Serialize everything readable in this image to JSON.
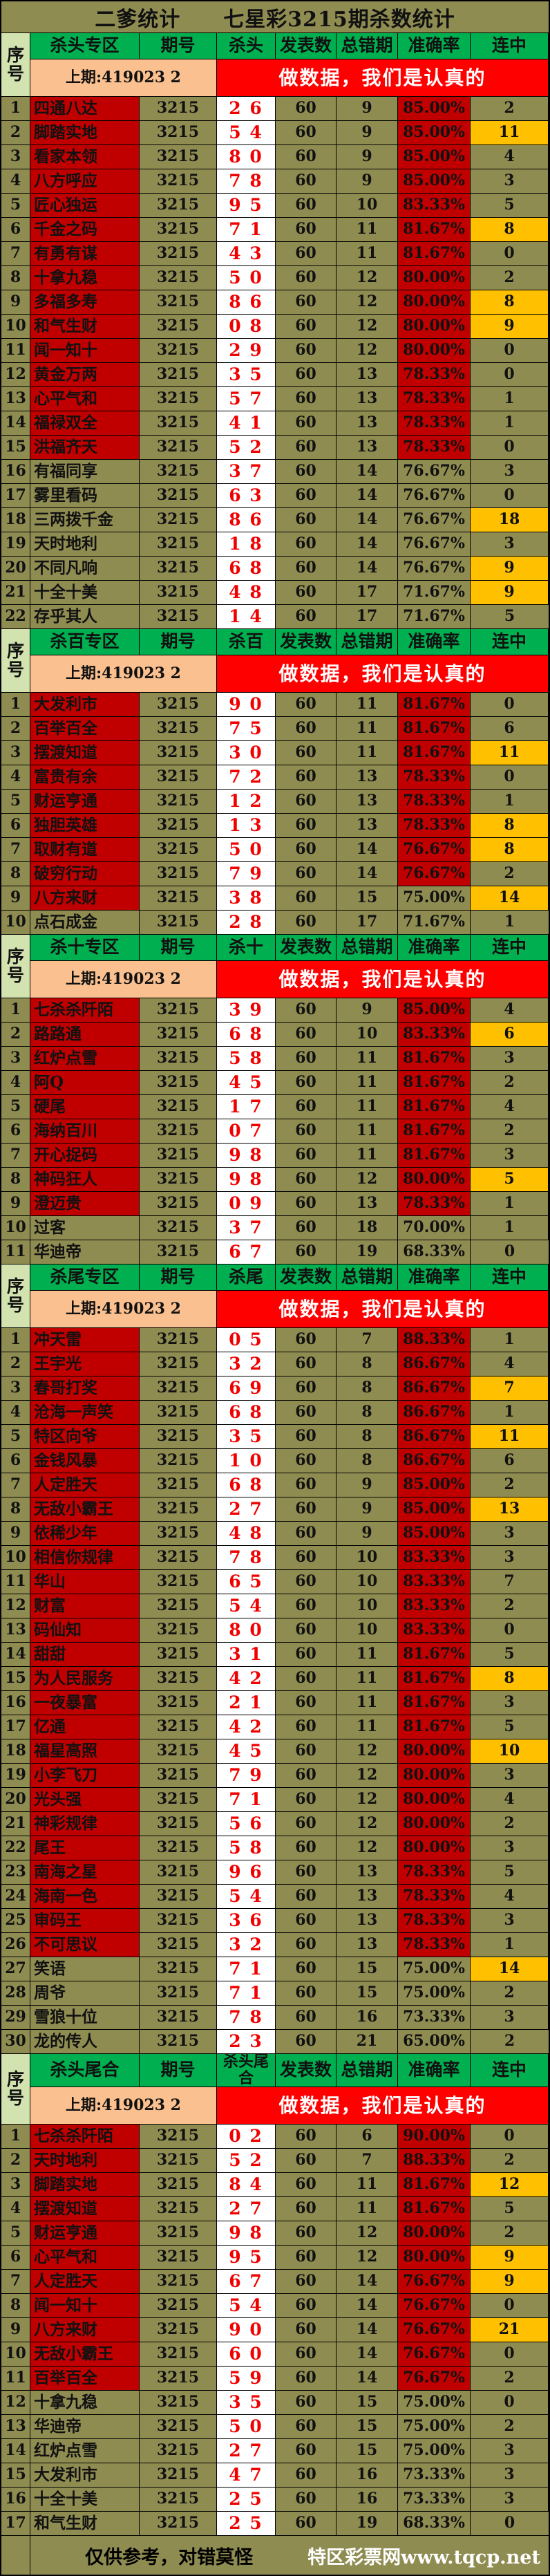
{
  "title": "二爹统计　　七星彩3215期杀数统计",
  "seq_header": "序号",
  "shared_columns": {
    "period": "期号",
    "published": "发表数",
    "total_errors": "总错期",
    "accuracy": "准确率",
    "streak": "连中"
  },
  "subheader": {
    "prev": "上期:419023 2",
    "banner": "做数据，我们是认真的"
  },
  "row_fields": [
    "no",
    "name",
    "period",
    "kill",
    "published",
    "total_errors",
    "accuracy",
    "streak",
    "streak_highlight",
    "name_red",
    "accuracy_red"
  ],
  "sections": [
    {
      "zone": "杀头专区",
      "kill_label": "杀头",
      "rows": [
        [
          1,
          "四通八达",
          "3215",
          "2 6",
          60,
          9,
          "85.00%",
          2,
          false,
          true,
          true
        ],
        [
          2,
          "脚踏实地",
          "3215",
          "5 4",
          60,
          9,
          "85.00%",
          11,
          true,
          true,
          true
        ],
        [
          3,
          "看家本领",
          "3215",
          "8 0",
          60,
          9,
          "85.00%",
          4,
          false,
          true,
          true
        ],
        [
          4,
          "八方呼应",
          "3215",
          "7 8",
          60,
          9,
          "85.00%",
          3,
          false,
          true,
          true
        ],
        [
          5,
          "匠心独运",
          "3215",
          "9 5",
          60,
          10,
          "83.33%",
          5,
          false,
          true,
          true
        ],
        [
          6,
          "千金之码",
          "3215",
          "7 1",
          60,
          11,
          "81.67%",
          8,
          true,
          true,
          true
        ],
        [
          7,
          "有勇有谋",
          "3215",
          "4 3",
          60,
          11,
          "81.67%",
          0,
          false,
          true,
          true
        ],
        [
          8,
          "十拿九稳",
          "3215",
          "5 0",
          60,
          12,
          "80.00%",
          2,
          false,
          true,
          true
        ],
        [
          9,
          "多福多寿",
          "3215",
          "8 6",
          60,
          12,
          "80.00%",
          8,
          true,
          true,
          true
        ],
        [
          10,
          "和气生财",
          "3215",
          "0 8",
          60,
          12,
          "80.00%",
          9,
          true,
          true,
          true
        ],
        [
          11,
          "闻一知十",
          "3215",
          "2 9",
          60,
          12,
          "80.00%",
          0,
          false,
          true,
          true
        ],
        [
          12,
          "黄金万两",
          "3215",
          "3 5",
          60,
          13,
          "78.33%",
          0,
          false,
          true,
          true
        ],
        [
          13,
          "心平气和",
          "3215",
          "5 7",
          60,
          13,
          "78.33%",
          1,
          false,
          true,
          true
        ],
        [
          14,
          "福禄双全",
          "3215",
          "4 1",
          60,
          13,
          "78.33%",
          1,
          false,
          true,
          true
        ],
        [
          15,
          "洪福齐天",
          "3215",
          "5 2",
          60,
          13,
          "78.33%",
          0,
          false,
          true,
          true
        ],
        [
          16,
          "有福同享",
          "3215",
          "3 7",
          60,
          14,
          "76.67%",
          3,
          false,
          false,
          false
        ],
        [
          17,
          "雾里看码",
          "3215",
          "6 3",
          60,
          14,
          "76.67%",
          0,
          false,
          false,
          false
        ],
        [
          18,
          "三两拨千金",
          "3215",
          "8 6",
          60,
          14,
          "76.67%",
          18,
          true,
          false,
          false
        ],
        [
          19,
          "天时地利",
          "3215",
          "1 8",
          60,
          14,
          "76.67%",
          3,
          false,
          false,
          false
        ],
        [
          20,
          "不同凡响",
          "3215",
          "6 8",
          60,
          14,
          "76.67%",
          9,
          true,
          false,
          false
        ],
        [
          21,
          "十全十美",
          "3215",
          "4 8",
          60,
          17,
          "71.67%",
          9,
          true,
          false,
          false
        ],
        [
          22,
          "存乎其人",
          "3215",
          "1 4",
          60,
          17,
          "71.67%",
          5,
          false,
          false,
          false
        ]
      ]
    },
    {
      "zone": "杀百专区",
      "kill_label": "杀百",
      "rows": [
        [
          1,
          "大发利市",
          "3215",
          "9 0",
          60,
          11,
          "81.67%",
          0,
          false,
          true,
          true
        ],
        [
          2,
          "百举百全",
          "3215",
          "7 5",
          60,
          11,
          "81.67%",
          6,
          false,
          true,
          true
        ],
        [
          3,
          "摆渡知道",
          "3215",
          "3 0",
          60,
          11,
          "81.67%",
          11,
          true,
          true,
          true
        ],
        [
          4,
          "富贵有余",
          "3215",
          "7 2",
          60,
          13,
          "78.33%",
          0,
          false,
          true,
          true
        ],
        [
          5,
          "财运亨通",
          "3215",
          "1 2",
          60,
          13,
          "78.33%",
          1,
          false,
          true,
          true
        ],
        [
          6,
          "独胆英雄",
          "3215",
          "1 3",
          60,
          13,
          "78.33%",
          8,
          true,
          true,
          true
        ],
        [
          7,
          "取财有道",
          "3215",
          "5 0",
          60,
          14,
          "76.67%",
          8,
          true,
          true,
          true
        ],
        [
          8,
          "破穷行动",
          "3215",
          "7 9",
          60,
          14,
          "76.67%",
          2,
          false,
          true,
          true
        ],
        [
          9,
          "八方来财",
          "3215",
          "3 8",
          60,
          15,
          "75.00%",
          14,
          true,
          true,
          false
        ],
        [
          10,
          "点石成金",
          "3215",
          "2 8",
          60,
          17,
          "71.67%",
          1,
          false,
          false,
          false
        ]
      ]
    },
    {
      "zone": "杀十专区",
      "kill_label": "杀十",
      "rows": [
        [
          1,
          "七杀杀阡陌",
          "3215",
          "3 9",
          60,
          9,
          "85.00%",
          4,
          false,
          true,
          true
        ],
        [
          2,
          "路路通",
          "3215",
          "6 8",
          60,
          10,
          "83.33%",
          6,
          true,
          true,
          true
        ],
        [
          3,
          "红炉点雪",
          "3215",
          "5 8",
          60,
          11,
          "81.67%",
          3,
          false,
          true,
          true
        ],
        [
          4,
          "阿Q",
          "3215",
          "4 5",
          60,
          11,
          "81.67%",
          2,
          false,
          true,
          true
        ],
        [
          5,
          "硬尾",
          "3215",
          "1 7",
          60,
          11,
          "81.67%",
          4,
          false,
          true,
          true
        ],
        [
          6,
          "海纳百川",
          "3215",
          "0 7",
          60,
          11,
          "81.67%",
          2,
          false,
          true,
          true
        ],
        [
          7,
          "开心捉码",
          "3215",
          "9 8",
          60,
          11,
          "81.67%",
          3,
          false,
          true,
          true
        ],
        [
          8,
          "神码狂人",
          "3215",
          "9 8",
          60,
          12,
          "80.00%",
          5,
          true,
          true,
          true
        ],
        [
          9,
          "澄迈贵",
          "3215",
          "0 9",
          60,
          13,
          "78.33%",
          1,
          false,
          true,
          true
        ],
        [
          10,
          "过客",
          "3215",
          "3 7",
          60,
          18,
          "70.00%",
          1,
          false,
          false,
          false
        ],
        [
          11,
          "华迪帝",
          "3215",
          "6 7",
          60,
          19,
          "68.33%",
          0,
          false,
          false,
          false
        ]
      ]
    },
    {
      "zone": "杀尾专区",
      "kill_label": "杀尾",
      "rows": [
        [
          1,
          "冲天雷",
          "3215",
          "0 5",
          60,
          7,
          "88.33%",
          1,
          false,
          true,
          true
        ],
        [
          2,
          "王宇光",
          "3215",
          "3 2",
          60,
          8,
          "86.67%",
          4,
          false,
          true,
          true
        ],
        [
          3,
          "春哥打奖",
          "3215",
          "6 9",
          60,
          8,
          "86.67%",
          7,
          true,
          true,
          true
        ],
        [
          4,
          "沧海一声笑",
          "3215",
          "6 8",
          60,
          8,
          "86.67%",
          1,
          false,
          true,
          true
        ],
        [
          5,
          "特区向爷",
          "3215",
          "3 5",
          60,
          8,
          "86.67%",
          11,
          true,
          true,
          true
        ],
        [
          6,
          "金钱风暴",
          "3215",
          "1 0",
          60,
          8,
          "86.67%",
          6,
          false,
          true,
          true
        ],
        [
          7,
          "人定胜天",
          "3215",
          "6 8",
          60,
          9,
          "85.00%",
          2,
          false,
          true,
          true
        ],
        [
          8,
          "无敌小霸王",
          "3215",
          "2 7",
          60,
          9,
          "85.00%",
          13,
          true,
          true,
          true
        ],
        [
          9,
          "依稀少年",
          "3215",
          "4 8",
          60,
          9,
          "85.00%",
          3,
          false,
          true,
          true
        ],
        [
          10,
          "相信你规律",
          "3215",
          "7 8",
          60,
          10,
          "83.33%",
          3,
          false,
          true,
          true
        ],
        [
          11,
          "华山",
          "3215",
          "6 5",
          60,
          10,
          "83.33%",
          7,
          false,
          true,
          true
        ],
        [
          12,
          "财富",
          "3215",
          "5 4",
          60,
          10,
          "83.33%",
          2,
          false,
          true,
          true
        ],
        [
          13,
          "码仙知",
          "3215",
          "8 0",
          60,
          10,
          "83.33%",
          0,
          false,
          true,
          true
        ],
        [
          14,
          "甜甜",
          "3215",
          "3 1",
          60,
          11,
          "81.67%",
          5,
          false,
          true,
          true
        ],
        [
          15,
          "为人民服务",
          "3215",
          "4 2",
          60,
          11,
          "81.67%",
          8,
          true,
          true,
          true
        ],
        [
          16,
          "一夜暴富",
          "3215",
          "2 1",
          60,
          11,
          "81.67%",
          3,
          false,
          true,
          true
        ],
        [
          17,
          "亿通",
          "3215",
          "4 2",
          60,
          11,
          "81.67%",
          5,
          false,
          true,
          true
        ],
        [
          18,
          "福星高照",
          "3215",
          "4 5",
          60,
          12,
          "80.00%",
          10,
          true,
          true,
          true
        ],
        [
          19,
          "小李飞刀",
          "3215",
          "7 9",
          60,
          12,
          "80.00%",
          3,
          false,
          true,
          true
        ],
        [
          20,
          "光头强",
          "3215",
          "7 1",
          60,
          12,
          "80.00%",
          4,
          false,
          true,
          true
        ],
        [
          21,
          "神彩规律",
          "3215",
          "5 6",
          60,
          12,
          "80.00%",
          2,
          false,
          true,
          true
        ],
        [
          22,
          "尾王",
          "3215",
          "5 8",
          60,
          12,
          "80.00%",
          3,
          false,
          true,
          true
        ],
        [
          23,
          "南海之星",
          "3215",
          "9 6",
          60,
          13,
          "78.33%",
          5,
          false,
          true,
          true
        ],
        [
          24,
          "海南一色",
          "3215",
          "5 4",
          60,
          13,
          "78.33%",
          4,
          false,
          true,
          true
        ],
        [
          25,
          "审码王",
          "3215",
          "3 6",
          60,
          13,
          "78.33%",
          3,
          false,
          true,
          true
        ],
        [
          26,
          "不可思议",
          "3215",
          "3 2",
          60,
          13,
          "78.33%",
          1,
          false,
          true,
          true
        ],
        [
          27,
          "笑语",
          "3215",
          "7 1",
          60,
          15,
          "75.00%",
          14,
          true,
          false,
          false
        ],
        [
          28,
          "周爷",
          "3215",
          "7 1",
          60,
          15,
          "75.00%",
          2,
          false,
          false,
          false
        ],
        [
          29,
          "雪狼十位",
          "3215",
          "7 8",
          60,
          16,
          "73.33%",
          3,
          false,
          false,
          false
        ],
        [
          30,
          "龙的传人",
          "3215",
          "2 3",
          60,
          21,
          "65.00%",
          2,
          false,
          false,
          false
        ]
      ]
    },
    {
      "zone": "杀头尾合",
      "kill_label": "杀头尾合",
      "rows": [
        [
          1,
          "七杀杀阡陌",
          "3215",
          "0 2",
          60,
          6,
          "90.00%",
          0,
          false,
          true,
          true
        ],
        [
          2,
          "天时地利",
          "3215",
          "5 2",
          60,
          7,
          "88.33%",
          2,
          false,
          true,
          true
        ],
        [
          3,
          "脚踏实地",
          "3215",
          "8 4",
          60,
          11,
          "81.67%",
          12,
          true,
          true,
          true
        ],
        [
          4,
          "摆渡知道",
          "3215",
          "2 7",
          60,
          11,
          "81.67%",
          5,
          false,
          true,
          true
        ],
        [
          5,
          "财运亨通",
          "3215",
          "9 8",
          60,
          12,
          "80.00%",
          2,
          false,
          true,
          true
        ],
        [
          6,
          "心平气和",
          "3215",
          "9 5",
          60,
          12,
          "80.00%",
          9,
          true,
          true,
          true
        ],
        [
          7,
          "人定胜天",
          "3215",
          "6 7",
          60,
          14,
          "76.67%",
          9,
          true,
          true,
          true
        ],
        [
          8,
          "闻一知十",
          "3215",
          "5 4",
          60,
          14,
          "76.67%",
          0,
          false,
          true,
          true
        ],
        [
          9,
          "八方来财",
          "3215",
          "9 0",
          60,
          14,
          "76.67%",
          21,
          true,
          true,
          true
        ],
        [
          10,
          "无敌小霸王",
          "3215",
          "6 0",
          60,
          14,
          "76.67%",
          0,
          false,
          true,
          true
        ],
        [
          11,
          "百举百全",
          "3215",
          "5 9",
          60,
          14,
          "76.67%",
          2,
          false,
          true,
          true
        ],
        [
          12,
          "十拿九稳",
          "3215",
          "3 5",
          60,
          15,
          "75.00%",
          0,
          false,
          false,
          false
        ],
        [
          13,
          "华迪帝",
          "3215",
          "5 0",
          60,
          15,
          "75.00%",
          2,
          false,
          false,
          false
        ],
        [
          14,
          "红炉点雪",
          "3215",
          "2 7",
          60,
          15,
          "75.00%",
          3,
          false,
          false,
          false
        ],
        [
          15,
          "大发利市",
          "3215",
          "4 7",
          60,
          16,
          "73.33%",
          3,
          false,
          false,
          false
        ],
        [
          16,
          "十全十美",
          "3215",
          "2 5",
          60,
          16,
          "73.33%",
          3,
          false,
          false,
          false
        ],
        [
          17,
          "和气生财",
          "3215",
          "2 5",
          60,
          19,
          "68.33%",
          0,
          false,
          false,
          false
        ]
      ]
    }
  ],
  "footer": {
    "left": "仅供参考，对错莫怪",
    "right": "特区彩票网www.tqcp.net"
  },
  "colors": {
    "olive_bg": "#8f8c52",
    "header_green": "#00b050",
    "seq_light_green": "#d3e3b0",
    "prev_peach": "#fac08f",
    "banner_red": "#ff0000",
    "cell_dark_red": "#c00000",
    "streak_orange": "#ffc000",
    "kill_text_red": "#f10000",
    "kill_cell_white": "#ffffff"
  }
}
